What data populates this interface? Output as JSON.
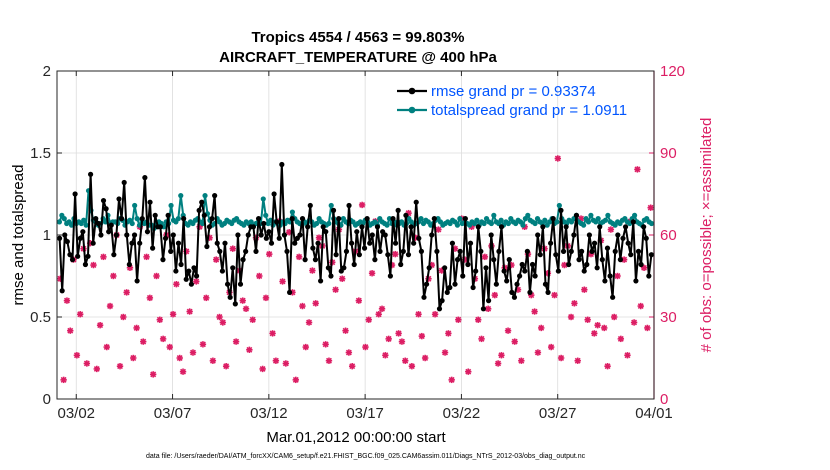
{
  "chart_data": {
    "type": "line",
    "title": "Tropics 4554 / 4563 = 99.803%",
    "subtitle": "AIRCRAFT_TEMPERATURE @ 400 hPa",
    "xlabel": "Mar.01,2012 00:00:00 start",
    "ylabel_left": "rmse and totalspread",
    "ylabel_right": "# of obs: o=possible; ×=assimilated",
    "footnote": "data file: /Users/raeder/DAI/ATM_forcXX/CAM6_setup/f.e21.FHIST_BGC.f09_025.CAM6assim.011/Diags_NTrS_2012-03/obs_diag_output.nc",
    "x_start": 1,
    "x_end": 32,
    "x_tick_values": [
      2,
      7,
      12,
      17,
      22,
      27,
      32
    ],
    "x_tick_labels": [
      "03/02",
      "03/07",
      "03/12",
      "03/17",
      "03/22",
      "03/27",
      "04/01"
    ],
    "ylim_left": [
      0,
      2
    ],
    "y_ticks_left": [
      0,
      0.5,
      1,
      1.5,
      2
    ],
    "y_tick_labels_left": [
      "0",
      "0.5",
      "1",
      "1.5",
      "2"
    ],
    "ylim_right": [
      0,
      120
    ],
    "y_ticks_right": [
      0,
      30,
      60,
      90,
      120
    ],
    "y_tick_labels_right": [
      "0",
      "30",
      "60",
      "90",
      "120"
    ],
    "grid": true,
    "legend_position": "top-right",
    "series": [
      {
        "name": "rmse grand pr = 0.93374",
        "axis": "left",
        "color": "#000000",
        "marker": "dot",
        "values": [
          0.98,
          0.66,
          1.0,
          0.96,
          0.88,
          0.85,
          1.25,
          0.87,
          0.98,
          1.02,
          0.82,
          0.87,
          1.37,
          0.95,
          1.1,
          1.07,
          1.0,
          1.21,
          1.16,
          1.02,
          1.06,
          0.88,
          1.0,
          1.22,
          1.1,
          1.32,
          1.0,
          0.82,
          0.95,
          1.0,
          0.72,
          0.95,
          1.1,
          1.35,
          1.02,
          1.2,
          0.92,
          1.12,
          1.05,
          1.05,
          0.85,
          0.98,
          1.12,
          0.9,
          1.0,
          0.78,
          0.95,
          0.82,
          1.1,
          0.73,
          0.78,
          0.7,
          0.8,
          0.75,
          1.15,
          1.2,
          1.12,
          0.93,
          1.05,
          1.1,
          1.24,
          0.95,
          0.9,
          0.78,
          0.95,
          0.7,
          0.62,
          0.8,
          0.58,
          1.0,
          0.7,
          0.85,
          0.9,
          1.0,
          1.05,
          1.05,
          0.9,
          1.1,
          1.0,
          1.07,
          0.98,
          1.02,
          0.95,
          1.25,
          1.08,
          0.98,
          1.43,
          1.0,
          0.9,
          0.65,
          1.1,
          0.95,
          0.98,
          1.0,
          1.1,
          0.85,
          1.05,
          1.18,
          0.92,
          0.85,
          0.95,
          0.72,
          1.05,
          1.02,
          0.8,
          0.75,
          1.15,
          0.88,
          1.1,
          0.78,
          0.8,
          0.9,
          1.18,
          0.95,
          0.82,
          1.02,
          0.88,
          1.05,
          0.92,
          1.1,
          0.95,
          1.0,
          0.85,
          1.05,
          0.9,
          1.02,
          1.0,
          0.88,
          0.75,
          1.1,
          0.95,
          1.15,
          0.82,
          0.9,
          1.12,
          0.88,
          1.05,
          0.95,
          1.2,
          0.98,
          0.9,
          0.62,
          0.7,
          0.8,
          1.0,
          1.1,
          0.9,
          0.55,
          0.6,
          0.8,
          0.65,
          0.68,
          0.95,
          0.7,
          0.85,
          0.9,
          0.75,
          1.1,
          0.82,
          0.95,
          0.68,
          0.78,
          1.05,
          0.9,
          0.55,
          0.8,
          0.6,
          1.0,
          0.85,
          0.7,
          0.9,
          1.05,
          0.78,
          0.72,
          0.85,
          0.65,
          0.62,
          0.7,
          0.75,
          0.82,
          0.78,
          0.9,
          0.65,
          0.82,
          0.75,
          1.0,
          0.88,
          1.05,
          0.7,
          0.65,
          0.95,
          1.1,
          0.88,
          0.78,
          1.15,
          0.9,
          1.05,
          0.82,
          0.9,
          1.0,
          1.12,
          0.85,
          0.9,
          0.78,
          0.82,
          1.0,
          0.9,
          0.95,
          0.8,
          1.05,
          0.85,
          0.72,
          0.92,
          0.75,
          0.62,
          0.9,
          1.0,
          0.85,
          0.98,
          1.05,
          0.95,
          0.88,
          1.08,
          0.72,
          0.9,
          0.82,
          1.05,
          0.98,
          0.75,
          0.88
        ]
      },
      {
        "name": "totalspread grand pr = 1.0911",
        "axis": "left",
        "color": "#008080",
        "marker": "dot",
        "values": [
          1.08,
          1.12,
          1.1,
          1.07,
          1.08,
          1.06,
          1.1,
          1.07,
          1.08,
          1.07,
          1.09,
          1.06,
          1.27,
          1.15,
          1.09,
          1.08,
          1.06,
          1.07,
          1.1,
          1.08,
          1.12,
          1.07,
          1.08,
          1.08,
          1.07,
          1.1,
          1.09,
          1.06,
          1.08,
          1.09,
          1.07,
          1.18,
          1.1,
          1.06,
          1.09,
          1.07,
          1.08,
          1.06,
          1.06,
          1.04,
          1.07,
          1.08,
          1.07,
          1.05,
          1.08,
          1.07,
          1.18,
          1.09,
          1.08,
          1.1,
          1.24,
          1.12,
          1.07,
          1.06,
          1.08,
          1.07,
          1.09,
          1.1,
          1.08,
          1.07,
          1.24,
          1.13,
          1.09,
          1.06,
          1.07,
          1.1,
          1.08,
          1.06,
          1.07,
          1.09,
          1.08,
          1.07,
          1.09,
          1.1,
          1.08,
          1.07,
          1.06,
          1.08,
          1.07,
          1.08,
          1.06,
          1.07,
          1.08,
          1.07,
          1.22,
          1.12,
          1.07,
          1.09,
          1.06,
          1.08,
          1.07,
          1.06,
          1.08,
          1.07,
          1.09,
          1.08,
          1.14,
          1.1,
          1.08,
          1.07,
          1.06,
          1.08,
          1.07,
          1.09,
          1.08,
          1.06,
          1.07,
          1.1,
          1.08,
          1.07,
          1.06,
          1.07,
          1.18,
          1.1,
          1.08,
          1.07,
          1.06,
          1.1,
          1.08,
          1.07,
          1.09,
          1.08,
          1.06,
          1.07,
          1.08,
          1.07,
          1.09,
          1.08,
          1.06,
          1.07,
          1.08,
          1.06,
          1.1,
          1.08,
          1.07,
          1.06,
          1.1,
          1.07,
          1.08,
          1.06,
          1.07,
          1.08,
          1.06,
          1.07,
          1.1,
          1.08,
          1.06,
          1.07,
          1.08,
          1.1,
          1.07,
          1.09,
          1.08,
          1.06,
          1.07,
          1.09,
          1.1,
          1.08,
          1.06,
          1.07,
          1.08,
          1.07,
          1.09,
          1.08,
          1.06,
          1.1,
          1.07,
          1.08,
          1.07,
          1.06,
          1.08,
          1.07,
          1.09,
          1.06,
          1.08,
          1.07,
          1.1,
          1.08,
          1.07,
          1.12,
          1.08,
          1.07,
          1.09,
          1.06,
          1.08,
          1.07,
          1.1,
          1.08,
          1.07,
          1.09,
          1.08,
          1.06,
          1.1,
          1.12,
          1.09,
          1.08,
          1.07,
          1.1,
          1.08,
          1.07,
          1.09,
          1.06,
          1.08,
          1.1,
          1.07,
          1.08,
          1.18,
          1.1,
          1.08,
          1.07,
          1.09,
          1.08,
          1.1,
          1.12,
          1.08,
          1.07,
          1.06,
          1.1,
          1.08,
          1.12,
          1.09,
          1.08,
          1.1,
          1.07,
          1.08,
          1.09,
          1.12,
          1.08,
          1.07,
          1.06,
          1.08,
          1.07,
          1.09,
          1.1,
          1.08,
          1.07,
          1.1,
          1.12,
          1.08,
          1.07,
          1.06,
          1.09,
          1.1,
          1.08,
          1.07
        ]
      },
      {
        "name": "# of obs possible / assimilated",
        "axis": "right",
        "color": "#dc1e64",
        "marker": "asterisk",
        "values": [
          44,
          7,
          36,
          25,
          51,
          16,
          31,
          55,
          13,
          57,
          49,
          11,
          27,
          52,
          19,
          34,
          45,
          60,
          12,
          30,
          39,
          48,
          15,
          26,
          63,
          21,
          52,
          37,
          9,
          45,
          29,
          22,
          60,
          19,
          31,
          42,
          15,
          10,
          54,
          32,
          17,
          43,
          63,
          20,
          37,
          59,
          14,
          51,
          30,
          28,
          12,
          39,
          55,
          21,
          47,
          36,
          33,
          18,
          29,
          59,
          45,
          11,
          37,
          53,
          24,
          14,
          65,
          43,
          13,
          61,
          39,
          7,
          52,
          34,
          19,
          28,
          47,
          35,
          59,
          56,
          20,
          14,
          50,
          40,
          62,
          44,
          25,
          17,
          12,
          54,
          36,
          71,
          19,
          29,
          46,
          65,
          31,
          33,
          16,
          22,
          49,
          53,
          24,
          21,
          14,
          68,
          12,
          59,
          31,
          23,
          15,
          44,
          49,
          31,
          62,
          47,
          17,
          24,
          7,
          55,
          29,
          66,
          51,
          10,
          63,
          44,
          29,
          22,
          52,
          33,
          56,
          38,
          13,
          16,
          48,
          25,
          49,
          21,
          40,
          14,
          63,
          53,
          38,
          32,
          17,
          26,
          55,
          46,
          19,
          38,
          88,
          15,
          49,
          56,
          30,
          35,
          14,
          66,
          40,
          29,
          53,
          24,
          27,
          58,
          26,
          12,
          62,
          30,
          45,
          22,
          51,
          16,
          65,
          28,
          84,
          34,
          48,
          26,
          70
        ]
      }
    ]
  }
}
